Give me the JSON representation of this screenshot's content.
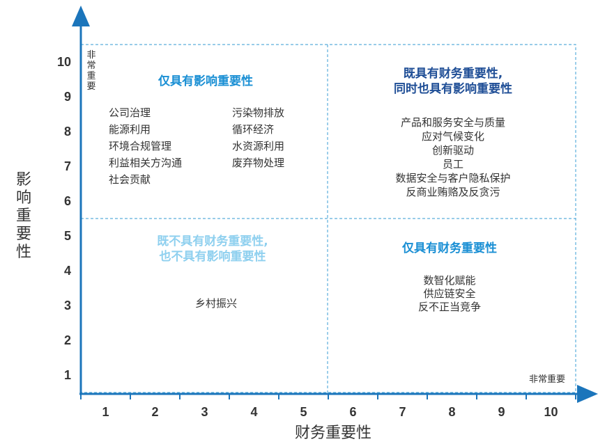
{
  "axes": {
    "x_title": "财务重要性",
    "y_title": "影响重要性",
    "x_corner_label": "非常重要",
    "y_corner_label": "非常重要",
    "x_ticks": [
      "1",
      "2",
      "3",
      "4",
      "5",
      "6",
      "7",
      "8",
      "9",
      "10"
    ],
    "y_ticks": [
      "1",
      "2",
      "3",
      "4",
      "5",
      "6",
      "7",
      "8",
      "9",
      "10"
    ]
  },
  "colors": {
    "axis": "#1b75bb",
    "divider": "#5aaedb",
    "dark_blue": "#1f4e96",
    "medium_blue": "#1a8fd4",
    "light_blue": "#8fd0ef",
    "text": "#333333"
  },
  "quadrants": {
    "top_left": {
      "title": "仅具有影响重要性",
      "items_left": [
        "公司治理",
        "能源利用",
        "环境合规管理",
        "利益相关方沟通",
        "社会贡献"
      ],
      "items_right": [
        "污染物排放",
        "循环经济",
        "水资源利用",
        "废弃物处理"
      ]
    },
    "top_right": {
      "title_line1": "既具有财务重要性,",
      "title_line2": "同时也具有影响重要性",
      "items": [
        "产品和服务安全与质量",
        "应对气候变化",
        "创新驱动",
        "员工",
        "数据安全与客户隐私保护",
        "反商业贿赂及反贪污"
      ]
    },
    "bottom_left": {
      "title_line1": "既不具有财务重要性,",
      "title_line2": "也不具有影响重要性",
      "items": [
        "乡村振兴"
      ]
    },
    "bottom_right": {
      "title": "仅具有财务重要性",
      "items": [
        "数智化赋能",
        "供应链安全",
        "反不正当竞争"
      ]
    }
  }
}
